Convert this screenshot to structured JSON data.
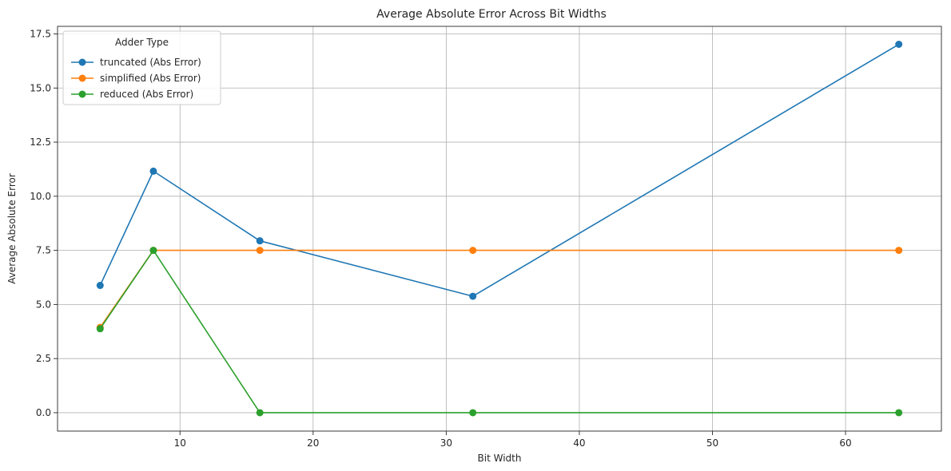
{
  "chart_data": {
    "type": "line",
    "title": "Average Absolute Error Across Bit Widths",
    "xlabel": "Bit Width",
    "ylabel": "Average Absolute Error",
    "xlim": [
      0.8,
      67.2
    ],
    "ylim": [
      -0.85,
      17.85
    ],
    "xticks": [
      10,
      20,
      30,
      40,
      50,
      60
    ],
    "yticks": [
      0.0,
      2.5,
      5.0,
      7.5,
      10.0,
      12.5,
      15.0,
      17.5
    ],
    "ytick_labels": [
      "0.0",
      "2.5",
      "5.0",
      "7.5",
      "10.0",
      "12.5",
      "15.0",
      "17.5"
    ],
    "grid": true,
    "legend": {
      "title": "Adder Type",
      "placement": "top-left"
    },
    "x": [
      4,
      8,
      16,
      32,
      64
    ],
    "series": [
      {
        "name": "truncated (Abs Error)",
        "color": "#1f77b4",
        "values": [
          5.88,
          11.16,
          7.94,
          5.38,
          17.02
        ]
      },
      {
        "name": "simplified (Abs Error)",
        "color": "#ff7f0e",
        "values": [
          3.94,
          7.5,
          7.5,
          7.5,
          7.5
        ]
      },
      {
        "name": "reduced (Abs Error)",
        "color": "#2ca02c",
        "values": [
          3.88,
          7.5,
          0.0,
          0.0,
          0.0
        ]
      }
    ]
  }
}
